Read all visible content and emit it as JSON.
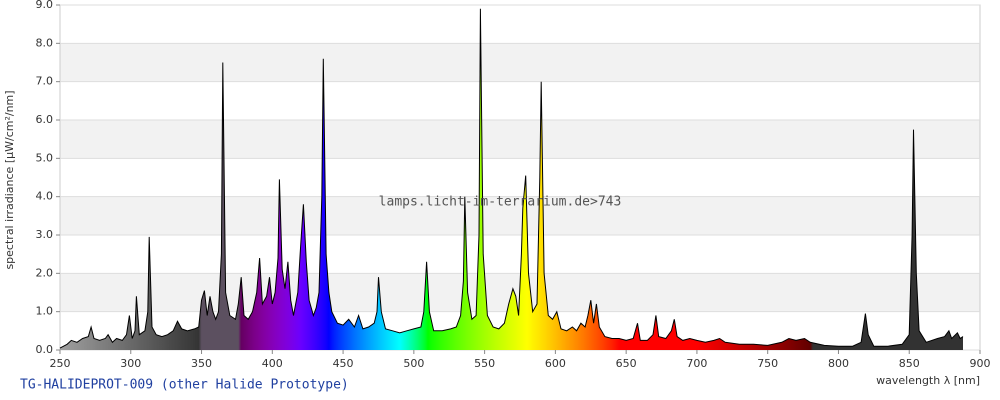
{
  "chart_data": {
    "type": "area",
    "title": "TG-HALIDEPROT-009 (other Halide Prototype)",
    "watermark": "lamps.licht-im-terrarium.de>743",
    "x_label": "wavelength λ [nm]",
    "y_label": "spectral irradiance [µW/cm²/nm]",
    "x": [
      250,
      255,
      258,
      262,
      266,
      270,
      272,
      274,
      278,
      282,
      284,
      287,
      290,
      294,
      297,
      299,
      301,
      303,
      304,
      306,
      310,
      312,
      313,
      315,
      318,
      322,
      326,
      330,
      333,
      336,
      340,
      345,
      348,
      350,
      352,
      354,
      356,
      358,
      360,
      362,
      364,
      365,
      367,
      370,
      374,
      376,
      378,
      380,
      383,
      386,
      389,
      391,
      393,
      396,
      398,
      400,
      402,
      404,
      405,
      407,
      409,
      411,
      413,
      415,
      418,
      420,
      422,
      424,
      426,
      429,
      431,
      433,
      435,
      436,
      438,
      440,
      442,
      446,
      450,
      454,
      458,
      461,
      464,
      468,
      472,
      474,
      475,
      477,
      480,
      485,
      490,
      495,
      500,
      505,
      507,
      509,
      511,
      514,
      520,
      526,
      530,
      533,
      535,
      536,
      538,
      541,
      544,
      546,
      547,
      549,
      552,
      556,
      560,
      564,
      567,
      570,
      572,
      574,
      576,
      577,
      579,
      581,
      584,
      587,
      589,
      590,
      592,
      595,
      598,
      601,
      604,
      608,
      612,
      615,
      618,
      621,
      623,
      625,
      627,
      629,
      631,
      635,
      640,
      645,
      650,
      655,
      658,
      660,
      665,
      669,
      671,
      673,
      678,
      682,
      684,
      686,
      690,
      695,
      700,
      706,
      712,
      716,
      720,
      730,
      740,
      750,
      760,
      765,
      770,
      776,
      780,
      790,
      800,
      810,
      816,
      819,
      821,
      825,
      835,
      845,
      850,
      852,
      853,
      855,
      857,
      862,
      870,
      875,
      878,
      880,
      884,
      886,
      888
    ],
    "values": [
      0.05,
      0.15,
      0.25,
      0.2,
      0.3,
      0.35,
      0.6,
      0.3,
      0.25,
      0.3,
      0.4,
      0.2,
      0.3,
      0.25,
      0.4,
      0.9,
      0.3,
      0.5,
      1.4,
      0.4,
      0.5,
      1.0,
      2.95,
      0.6,
      0.4,
      0.35,
      0.4,
      0.5,
      0.75,
      0.55,
      0.5,
      0.55,
      0.6,
      1.3,
      1.55,
      0.9,
      1.4,
      1.0,
      0.8,
      1.0,
      2.5,
      7.5,
      1.5,
      0.9,
      0.8,
      1.2,
      1.9,
      0.9,
      0.8,
      1.0,
      1.5,
      2.4,
      1.2,
      1.4,
      1.9,
      1.2,
      1.5,
      2.4,
      4.45,
      2.1,
      1.6,
      2.3,
      1.3,
      0.9,
      1.5,
      2.7,
      3.8,
      2.3,
      1.3,
      0.9,
      1.1,
      1.5,
      4.0,
      7.6,
      2.5,
      1.5,
      1.0,
      0.7,
      0.65,
      0.8,
      0.6,
      0.9,
      0.55,
      0.6,
      0.7,
      1.0,
      1.9,
      1.0,
      0.55,
      0.5,
      0.45,
      0.5,
      0.55,
      0.6,
      1.0,
      2.3,
      1.0,
      0.5,
      0.5,
      0.55,
      0.6,
      0.9,
      1.8,
      4.0,
      1.5,
      0.8,
      0.9,
      3.0,
      8.9,
      2.5,
      0.9,
      0.6,
      0.55,
      0.7,
      1.2,
      1.6,
      1.4,
      0.9,
      2.5,
      3.7,
      4.55,
      2.0,
      1.0,
      1.2,
      4.5,
      7.0,
      2.0,
      0.9,
      0.8,
      1.0,
      0.55,
      0.5,
      0.6,
      0.5,
      0.7,
      0.6,
      0.9,
      1.3,
      0.7,
      1.2,
      0.6,
      0.35,
      0.3,
      0.3,
      0.25,
      0.3,
      0.7,
      0.25,
      0.25,
      0.4,
      0.9,
      0.35,
      0.3,
      0.5,
      0.8,
      0.35,
      0.25,
      0.3,
      0.25,
      0.2,
      0.25,
      0.3,
      0.2,
      0.15,
      0.15,
      0.12,
      0.2,
      0.3,
      0.25,
      0.3,
      0.2,
      0.12,
      0.1,
      0.1,
      0.2,
      0.95,
      0.4,
      0.1,
      0.1,
      0.15,
      0.4,
      3.0,
      5.75,
      2.0,
      0.5,
      0.2,
      0.3,
      0.35,
      0.5,
      0.3,
      0.45,
      0.3,
      0.35
    ],
    "xlim": [
      250,
      900
    ],
    "xticks": [
      250,
      300,
      350,
      400,
      450,
      500,
      550,
      600,
      650,
      700,
      750,
      800,
      850,
      900
    ],
    "ylim": [
      0,
      9
    ],
    "yticks": [
      {
        "value": 0,
        "label": "0.0"
      },
      {
        "value": 1,
        "label": "1.0"
      },
      {
        "value": 2,
        "label": "2.0"
      },
      {
        "value": 3,
        "label": "3.0"
      },
      {
        "value": 4,
        "label": "4.0"
      },
      {
        "value": 5,
        "label": "5.0"
      },
      {
        "value": 6,
        "label": "6.0"
      },
      {
        "value": 7,
        "label": "7.0"
      },
      {
        "value": 8,
        "label": "8.0"
      },
      {
        "value": 9,
        "label": "9.0"
      }
    ],
    "grid": true
  }
}
